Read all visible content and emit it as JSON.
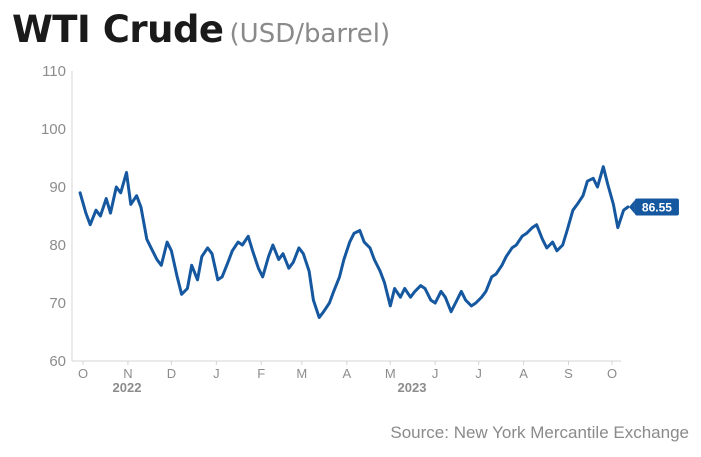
{
  "chart_data": {
    "type": "line",
    "title": "WTI Crude",
    "subtitle": "(USD/barrel)",
    "y_ticks": [
      "110",
      "100",
      "90",
      "80",
      "70",
      "60"
    ],
    "ylim": [
      60,
      110
    ],
    "x_ticks": [
      "O",
      "N",
      "D",
      "J",
      "F",
      "M",
      "A",
      "M",
      "J",
      "J",
      "A",
      "S",
      "O"
    ],
    "year_labels": [
      "2022",
      "2023"
    ],
    "last_value_label": "86.55",
    "line_color": "#1558a0",
    "grid": false,
    "series": [
      {
        "x": [
          "2022-09-29",
          "2022-10-03",
          "2022-10-06",
          "2022-10-10",
          "2022-10-13",
          "2022-10-17",
          "2022-10-20",
          "2022-10-24",
          "2022-10-27",
          "2022-10-31",
          "2022-11-03",
          "2022-11-07",
          "2022-11-10",
          "2022-11-14",
          "2022-11-17",
          "2022-11-21",
          "2022-11-24",
          "2022-11-28",
          "2022-12-01",
          "2022-12-05",
          "2022-12-08",
          "2022-12-12",
          "2022-12-15",
          "2022-12-19",
          "2022-12-22",
          "2022-12-26",
          "2022-12-29",
          "2023-01-02",
          "2023-01-05",
          "2023-01-09",
          "2023-01-12",
          "2023-01-16",
          "2023-01-19",
          "2023-01-23",
          "2023-01-26",
          "2023-01-30",
          "2023-02-02",
          "2023-02-06",
          "2023-02-09",
          "2023-02-13",
          "2023-02-16",
          "2023-02-20",
          "2023-02-23",
          "2023-02-27",
          "2023-03-02",
          "2023-03-06",
          "2023-03-09",
          "2023-03-13",
          "2023-03-16",
          "2023-03-20",
          "2023-03-23",
          "2023-03-27",
          "2023-03-30",
          "2023-04-03",
          "2023-04-06",
          "2023-04-10",
          "2023-04-13",
          "2023-04-17",
          "2023-04-20",
          "2023-04-24",
          "2023-04-27",
          "2023-05-01",
          "2023-05-04",
          "2023-05-08",
          "2023-05-11",
          "2023-05-15",
          "2023-05-18",
          "2023-05-22",
          "2023-05-25",
          "2023-05-29",
          "2023-06-01",
          "2023-06-05",
          "2023-06-08",
          "2023-06-12",
          "2023-06-15",
          "2023-06-19",
          "2023-06-22",
          "2023-06-26",
          "2023-06-29",
          "2023-07-03",
          "2023-07-06",
          "2023-07-10",
          "2023-07-13",
          "2023-07-17",
          "2023-07-20",
          "2023-07-24",
          "2023-07-27",
          "2023-07-31",
          "2023-08-03",
          "2023-08-07",
          "2023-08-10",
          "2023-08-14",
          "2023-08-17",
          "2023-08-21",
          "2023-08-24",
          "2023-08-28",
          "2023-08-31",
          "2023-09-04",
          "2023-09-07",
          "2023-09-11",
          "2023-09-14",
          "2023-09-18",
          "2023-09-21",
          "2023-09-25",
          "2023-09-28",
          "2023-10-02",
          "2023-10-05",
          "2023-10-09",
          "2023-10-12"
        ],
        "y": [
          89.0,
          85.5,
          83.5,
          86.0,
          85.0,
          88.0,
          85.5,
          90.0,
          89.0,
          92.5,
          87.0,
          88.5,
          86.5,
          81.0,
          79.5,
          77.5,
          76.5,
          80.5,
          79.0,
          74.5,
          71.5,
          72.5,
          76.5,
          74.0,
          78.0,
          79.5,
          78.5,
          74.0,
          74.5,
          77.0,
          79.0,
          80.5,
          80.0,
          81.5,
          79.0,
          76.0,
          74.5,
          78.0,
          80.0,
          77.5,
          78.5,
          76.0,
          77.0,
          79.5,
          78.5,
          75.5,
          70.5,
          67.5,
          68.5,
          70.0,
          72.0,
          74.5,
          77.5,
          80.5,
          82.0,
          82.5,
          80.5,
          79.5,
          77.5,
          75.5,
          73.5,
          69.5,
          72.5,
          71.0,
          72.5,
          71.0,
          72.0,
          73.0,
          72.5,
          70.5,
          70.0,
          72.0,
          71.0,
          68.5,
          70.0,
          72.0,
          70.5,
          69.5,
          70.0,
          71.0,
          72.0,
          74.5,
          75.0,
          76.5,
          78.0,
          79.5,
          80.0,
          81.5,
          82.0,
          83.0,
          83.5,
          81.0,
          79.5,
          80.5,
          79.0,
          80.0,
          82.5,
          86.0,
          87.0,
          88.5,
          91.0,
          91.5,
          90.0,
          93.5,
          90.5,
          87.0,
          83.0,
          86.0,
          86.55
        ]
      }
    ],
    "source": "Source: New York Mercantile Exchange"
  }
}
